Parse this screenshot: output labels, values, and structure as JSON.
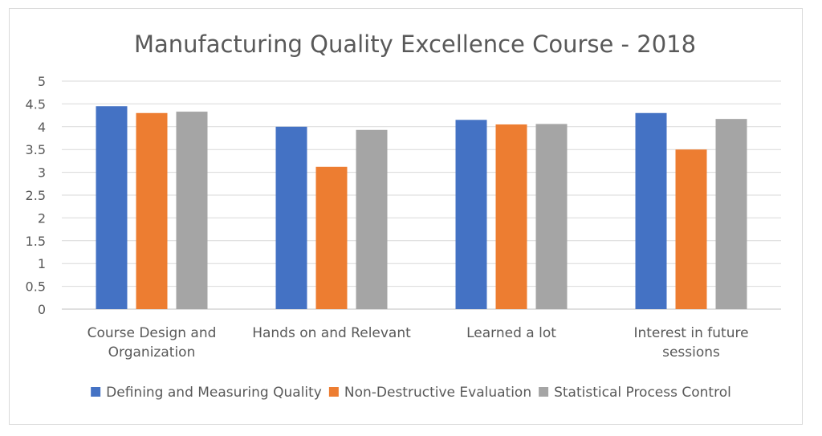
{
  "chart_data": {
    "type": "bar",
    "title": "Manufacturing Quality Excellence Course - 2018",
    "categories": [
      [
        "Course Design and",
        "Organization"
      ],
      [
        "Hands on and Relevant"
      ],
      [
        "Learned a lot"
      ],
      [
        "Interest in future",
        "sessions"
      ]
    ],
    "series": [
      {
        "name": "Defining and Measuring Quality",
        "color": "#4472C4",
        "values": [
          4.45,
          4.0,
          4.15,
          4.3
        ]
      },
      {
        "name": "Non-Destructive Evaluation",
        "color": "#ED7D31",
        "values": [
          4.3,
          3.12,
          4.05,
          3.5
        ]
      },
      {
        "name": "Statistical Process Control",
        "color": "#A5A5A5",
        "values": [
          4.33,
          3.93,
          4.06,
          4.17
        ]
      }
    ],
    "yticks": [
      "0",
      "0.5",
      "1",
      "1.5",
      "2",
      "2.5",
      "3",
      "3.5",
      "4",
      "4.5",
      "5"
    ],
    "ylim": [
      0,
      5
    ],
    "grid": true,
    "legend_position": "bottom"
  }
}
